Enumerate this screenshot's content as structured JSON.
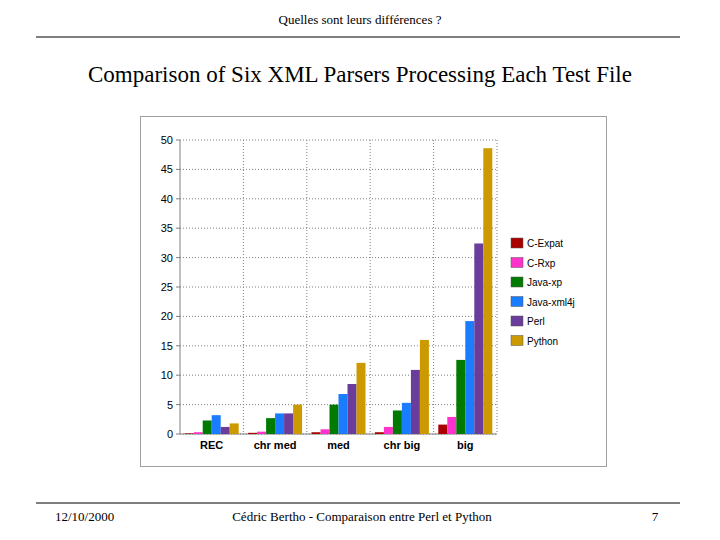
{
  "slide": {
    "header": "Quelles sont leurs différences ?",
    "footer_date": "12/10/2000",
    "footer_author": "Cédric Bertho  -  Comparaison entre Perl et Python",
    "page_number": "7"
  },
  "chart_data": {
    "type": "bar",
    "title": "Comparison of Six XML Parsers Processing Each Test File",
    "categories": [
      "REC",
      "chr med",
      "med",
      "chr big",
      "big"
    ],
    "series": [
      {
        "name": "C-Expat",
        "color": "#a80000",
        "values": [
          0.1,
          0.2,
          0.3,
          0.3,
          1.6
        ]
      },
      {
        "name": "C-Rxp",
        "color": "#ff33cc",
        "values": [
          0.3,
          0.4,
          0.8,
          1.2,
          2.9
        ]
      },
      {
        "name": "Java-xp",
        "color": "#007a00",
        "values": [
          2.3,
          2.7,
          5.0,
          4.0,
          12.6
        ]
      },
      {
        "name": "Java-xml4j",
        "color": "#1a7cff",
        "values": [
          3.2,
          3.5,
          6.8,
          5.3,
          19.2
        ]
      },
      {
        "name": "Perl",
        "color": "#6a3d9a",
        "values": [
          1.2,
          3.5,
          8.5,
          10.9,
          32.4
        ]
      },
      {
        "name": "Python",
        "color": "#cc9900",
        "values": [
          1.8,
          5.0,
          12.1,
          16.0,
          48.6
        ]
      }
    ],
    "ylim": [
      0,
      50
    ],
    "yticks": [
      0,
      5,
      10,
      15,
      20,
      25,
      30,
      35,
      40,
      45,
      50
    ],
    "grid": true,
    "legend": "right"
  }
}
